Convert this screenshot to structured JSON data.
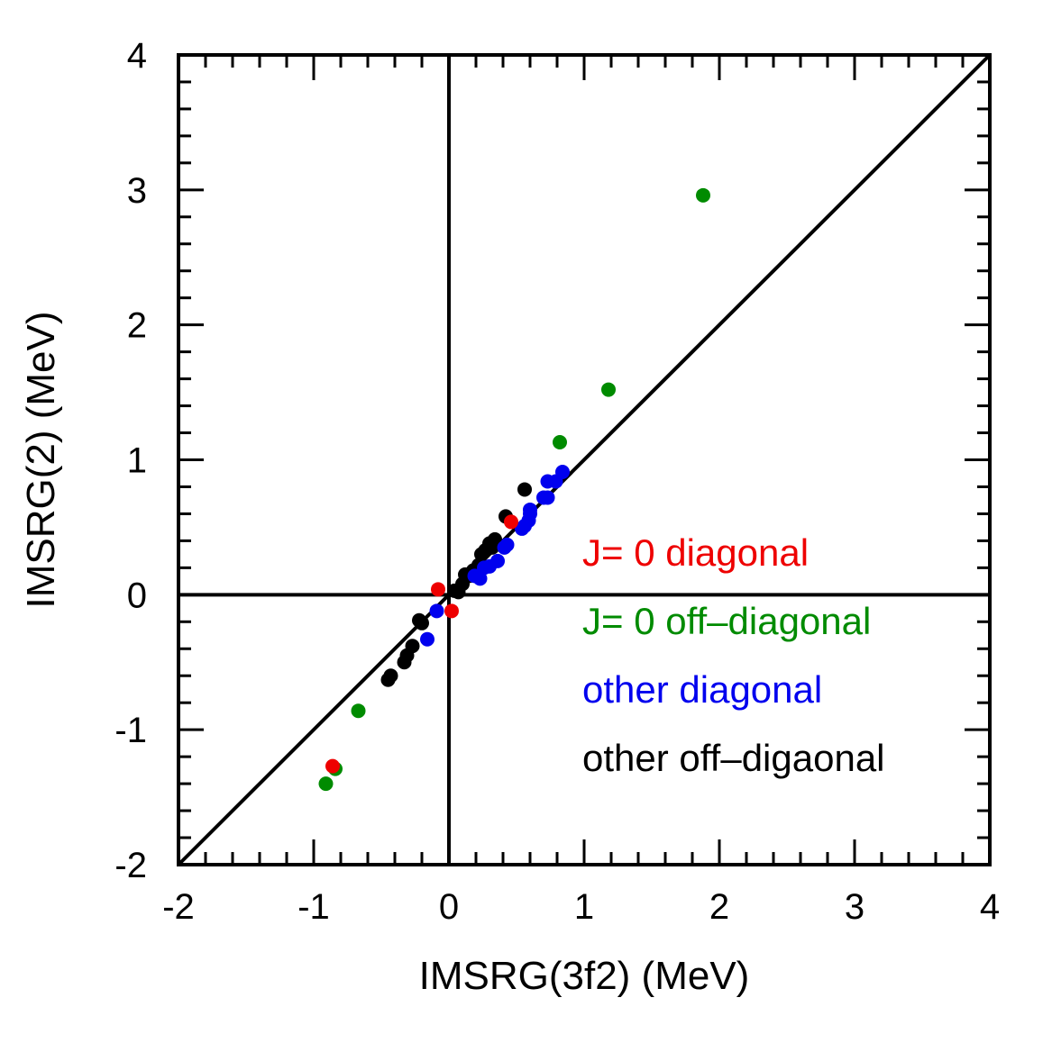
{
  "chart_data": {
    "type": "scatter",
    "title": "",
    "xlabel": "IMSRG(3f2) (MeV)",
    "ylabel": "IMSRG(2) (MeV)",
    "xlim": [
      -2,
      4
    ],
    "ylim": [
      -2,
      4
    ],
    "x_ticks": [
      "-2",
      "-1",
      "0",
      "1",
      "2",
      "3",
      "4"
    ],
    "y_ticks": [
      "-2",
      "-1",
      "0",
      "1",
      "2",
      "3",
      "4"
    ],
    "grid": false,
    "legend_position": "lower-right",
    "reference_lines": [
      "y = x",
      "x = 0",
      "y = 0"
    ],
    "series": [
      {
        "name": "J= 0 diagonal",
        "color": "#ee0000",
        "points": [
          [
            0.46,
            0.54
          ],
          [
            -0.08,
            0.04
          ],
          [
            0.02,
            -0.12
          ],
          [
            -0.86,
            -1.27
          ]
        ]
      },
      {
        "name": "J= 0 off–diagonal",
        "color": "#008b00",
        "points": [
          [
            1.88,
            2.96
          ],
          [
            1.18,
            1.52
          ],
          [
            0.82,
            1.13
          ],
          [
            -0.67,
            -0.86
          ],
          [
            -0.84,
            -1.29
          ],
          [
            -0.91,
            -1.4
          ]
        ]
      },
      {
        "name": "other diagonal",
        "color": "#0000ee",
        "points": [
          [
            0.84,
            0.91
          ],
          [
            0.79,
            0.84
          ],
          [
            0.73,
            0.84
          ],
          [
            0.73,
            0.72
          ],
          [
            0.7,
            0.72
          ],
          [
            0.6,
            0.6
          ],
          [
            0.6,
            0.63
          ],
          [
            0.59,
            0.55
          ],
          [
            0.56,
            0.51
          ],
          [
            0.54,
            0.49
          ],
          [
            0.43,
            0.37
          ],
          [
            0.41,
            0.35
          ],
          [
            0.36,
            0.25
          ],
          [
            0.3,
            0.21
          ],
          [
            0.26,
            0.2
          ],
          [
            0.23,
            0.12
          ],
          [
            0.19,
            0.14
          ],
          [
            -0.09,
            -0.12
          ],
          [
            -0.16,
            -0.33
          ]
        ]
      },
      {
        "name": "other off–digaonal",
        "color": "#000000",
        "points": [
          [
            0.56,
            0.78
          ],
          [
            0.42,
            0.58
          ],
          [
            0.34,
            0.41
          ],
          [
            0.32,
            0.35
          ],
          [
            0.3,
            0.38
          ],
          [
            0.27,
            0.33
          ],
          [
            0.24,
            0.3
          ],
          [
            0.22,
            0.22
          ],
          [
            0.2,
            0.17
          ],
          [
            0.18,
            0.18
          ],
          [
            0.15,
            0.14
          ],
          [
            0.12,
            0.15
          ],
          [
            0.1,
            0.08
          ],
          [
            0.07,
            0.02
          ],
          [
            0.04,
            0.03
          ],
          [
            -0.22,
            -0.19
          ],
          [
            -0.2,
            -0.21
          ],
          [
            -0.27,
            -0.38
          ],
          [
            -0.31,
            -0.45
          ],
          [
            -0.33,
            -0.5
          ],
          [
            -0.43,
            -0.6
          ],
          [
            -0.45,
            -0.63
          ]
        ]
      }
    ]
  }
}
